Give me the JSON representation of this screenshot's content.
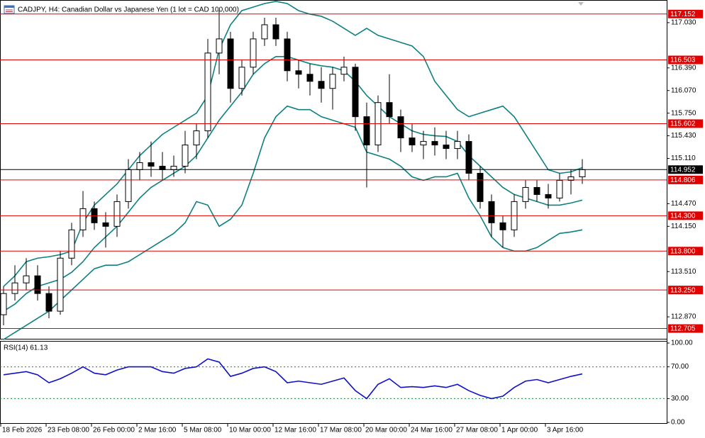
{
  "chart_data": [
    {
      "type": "candlestick",
      "title": "CADJPY, H4:  Canadian Dollar vs Japanese Yen (1 lot = CAD 100,000)",
      "categories": [
        "18 Feb 2026",
        null,
        null,
        null,
        "23 Feb 08:00",
        null,
        null,
        null,
        "26 Feb 00:00",
        null,
        null,
        null,
        "2 Mar 16:00",
        null,
        null,
        null,
        "5 Mar 08:00",
        null,
        null,
        null,
        "10 Mar 00:00",
        null,
        null,
        null,
        "12 Mar 16:00",
        null,
        null,
        null,
        "17 Mar 08:00",
        null,
        null,
        null,
        "20 Mar 00:00",
        null,
        null,
        null,
        "24 Mar 16:00",
        null,
        null,
        null,
        "27 Mar 08:00",
        null,
        null,
        null,
        "1 Apr 00:00",
        null,
        null,
        null,
        "3 Apr 16:00",
        null,
        null,
        null
      ],
      "open": [
        112.9,
        113.2,
        113.35,
        113.45,
        113.2,
        112.95,
        113.7,
        114.1,
        114.4,
        114.2,
        114.15,
        114.5,
        114.95,
        115.05,
        115.0,
        114.95,
        115.0,
        115.3,
        115.5,
        116.6,
        116.8,
        116.1,
        116.4,
        116.8,
        117.0,
        116.8,
        116.35,
        116.3,
        116.2,
        116.1,
        116.3,
        116.4,
        115.7,
        115.3,
        115.9,
        115.7,
        115.4,
        115.3,
        115.35,
        115.3,
        115.25,
        115.35,
        114.9,
        114.5,
        114.2,
        114.1,
        114.5,
        114.7,
        114.6,
        114.55,
        114.8,
        114.85
      ],
      "high": [
        113.3,
        113.6,
        113.7,
        113.6,
        113.3,
        113.8,
        114.2,
        114.65,
        114.5,
        114.35,
        114.6,
        115.1,
        115.2,
        115.35,
        115.2,
        115.15,
        115.5,
        115.6,
        116.8,
        117.2,
        116.9,
        116.5,
        116.9,
        117.1,
        117.1,
        116.9,
        116.5,
        116.45,
        116.4,
        116.4,
        116.55,
        116.45,
        115.9,
        116.0,
        116.3,
        115.8,
        115.6,
        115.5,
        115.55,
        115.5,
        115.5,
        115.45,
        115.0,
        114.6,
        114.3,
        114.6,
        114.8,
        114.8,
        114.75,
        114.9,
        114.95,
        115.1
      ],
      "low": [
        112.75,
        113.1,
        113.25,
        113.1,
        112.85,
        112.9,
        113.6,
        114.0,
        114.1,
        113.85,
        114.0,
        114.4,
        114.8,
        114.85,
        114.8,
        114.85,
        114.9,
        115.1,
        115.4,
        116.3,
        115.9,
        116.0,
        116.3,
        116.7,
        116.7,
        116.2,
        116.1,
        116.0,
        115.9,
        115.8,
        116.2,
        115.5,
        114.7,
        115.2,
        115.6,
        115.2,
        115.2,
        115.1,
        115.15,
        115.1,
        115.1,
        114.8,
        114.4,
        114.0,
        113.85,
        114.0,
        114.4,
        114.5,
        114.4,
        114.5,
        114.6,
        114.75
      ],
      "close": [
        113.2,
        113.35,
        113.45,
        113.2,
        112.95,
        113.7,
        114.1,
        114.4,
        114.2,
        114.15,
        114.5,
        114.95,
        115.05,
        115.0,
        114.95,
        115.0,
        115.3,
        115.5,
        116.6,
        116.8,
        116.1,
        116.4,
        116.8,
        117.0,
        116.8,
        116.35,
        116.3,
        116.2,
        116.1,
        116.3,
        116.4,
        115.7,
        115.3,
        115.9,
        115.7,
        115.4,
        115.3,
        115.35,
        115.3,
        115.25,
        115.35,
        114.9,
        114.5,
        114.2,
        114.1,
        114.5,
        114.7,
        114.6,
        114.55,
        114.8,
        114.85,
        114.95
      ],
      "color": "#000000",
      "bands": {
        "color": "#0e8080",
        "upper": [
          113.3,
          113.45,
          113.65,
          113.7,
          113.72,
          113.75,
          113.8,
          114.2,
          114.45,
          114.6,
          114.75,
          114.95,
          115.15,
          115.3,
          115.45,
          115.55,
          115.65,
          115.75,
          116.0,
          116.65,
          117.0,
          117.2,
          117.25,
          117.3,
          117.33,
          117.3,
          117.2,
          117.15,
          117.12,
          117.05,
          116.95,
          116.85,
          116.95,
          116.85,
          116.8,
          116.75,
          116.7,
          116.55,
          116.2,
          116.0,
          115.8,
          115.7,
          115.75,
          115.8,
          115.85,
          115.7,
          115.45,
          115.2,
          114.95,
          114.9,
          114.92,
          114.98
        ],
        "middle": [
          112.95,
          113.05,
          113.2,
          113.3,
          113.35,
          113.4,
          113.5,
          113.65,
          113.85,
          114.0,
          114.15,
          114.35,
          114.55,
          114.7,
          114.8,
          114.9,
          115.0,
          115.15,
          115.4,
          115.65,
          115.85,
          116.05,
          116.3,
          116.45,
          116.55,
          116.55,
          116.5,
          116.45,
          116.42,
          116.4,
          116.35,
          116.2,
          116.0,
          115.85,
          115.7,
          115.6,
          115.5,
          115.45,
          115.43,
          115.42,
          115.35,
          115.15,
          115.0,
          114.85,
          114.7,
          114.6,
          114.55,
          114.5,
          114.45,
          114.45,
          114.48,
          114.52
        ],
        "lower": [
          112.55,
          112.65,
          112.75,
          112.85,
          112.95,
          113.1,
          113.25,
          113.4,
          113.55,
          113.6,
          113.6,
          113.65,
          113.75,
          113.85,
          113.95,
          114.05,
          114.2,
          114.5,
          114.45,
          114.15,
          114.25,
          114.45,
          114.9,
          115.4,
          115.7,
          115.85,
          115.8,
          115.8,
          115.7,
          115.65,
          115.6,
          115.55,
          115.2,
          115.15,
          115.1,
          115.0,
          114.85,
          114.8,
          114.85,
          114.85,
          114.9,
          114.55,
          114.3,
          114.0,
          113.85,
          113.8,
          113.8,
          113.85,
          113.95,
          114.05,
          114.07,
          114.1
        ]
      },
      "ylim": [
        112.56,
        117.33
      ],
      "yticks": [
        {
          "value": 117.03,
          "label": "117.030"
        },
        {
          "value": 116.39,
          "label": "116.390"
        },
        {
          "value": 116.07,
          "label": "116.070"
        },
        {
          "value": 115.75,
          "label": "115.750"
        },
        {
          "value": 115.43,
          "label": "115.430"
        },
        {
          "value": 115.11,
          "label": "115.110"
        },
        {
          "value": 114.47,
          "label": "114.470"
        },
        {
          "value": 114.15,
          "label": "114.150"
        },
        {
          "value": 113.51,
          "label": "113.510"
        },
        {
          "value": 112.87,
          "label": "112.870"
        }
      ],
      "levels": [
        117.152,
        116.503,
        115.602,
        114.806,
        {
          "value": 114.3,
          "label": "114.300"
        },
        {
          "value": 113.8,
          "label": "113.800"
        },
        {
          "value": 113.25,
          "label": "113.250"
        },
        112.705
      ],
      "level_color": "#e00000",
      "current_price": 114.952,
      "current_price_color": "#000000"
    },
    {
      "type": "line",
      "title": "RSI(14) 61.13",
      "values": [
        60,
        62,
        64,
        60,
        50,
        55,
        62,
        70,
        62,
        60,
        66,
        70,
        70,
        70,
        64,
        62,
        68,
        70,
        80,
        76,
        58,
        62,
        68,
        70,
        64,
        50,
        52,
        50,
        48,
        52,
        56,
        40,
        30,
        48,
        55,
        44,
        45,
        44,
        46,
        44,
        48,
        40,
        34,
        30,
        33,
        44,
        52,
        54,
        50,
        54,
        58,
        61.13
      ],
      "color": "#1010c8",
      "ylim": [
        0,
        100
      ],
      "yticks": [
        {
          "value": 100,
          "label": "100.00"
        },
        {
          "value": 70,
          "label": "70.00"
        },
        {
          "value": 30,
          "label": "30.00"
        },
        {
          "value": 0,
          "label": "0.00"
        }
      ],
      "levels": [
        70,
        30
      ],
      "level_color": "#0a8a3a"
    }
  ]
}
